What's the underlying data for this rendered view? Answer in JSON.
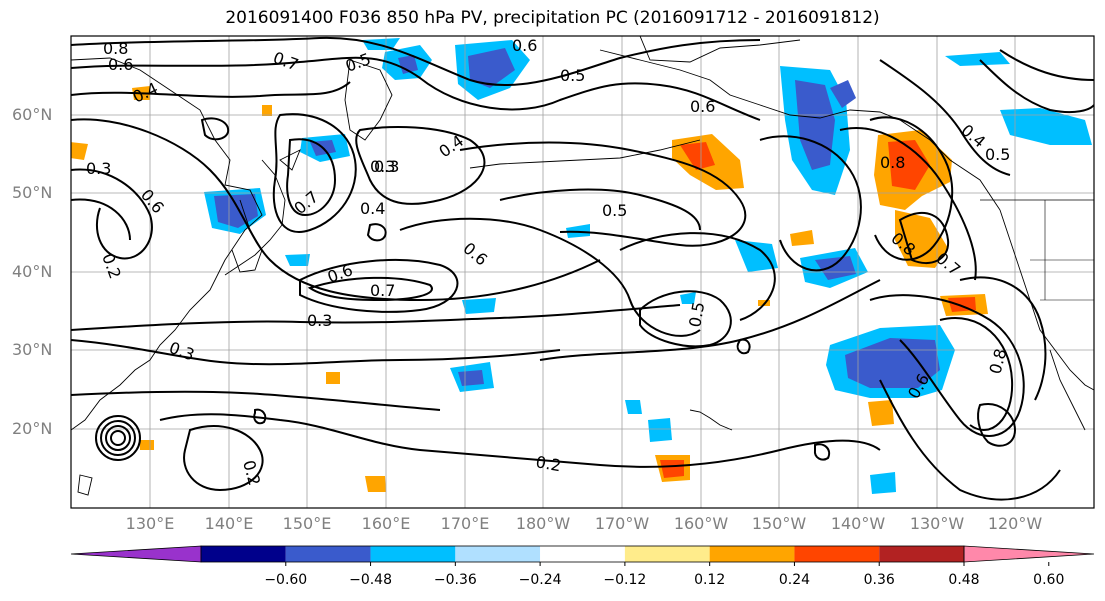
{
  "title": "2016091400 F036 850 hPa PV, precipitation PC (2016091712 - 2016091812)",
  "lat_labels": [
    "60°N",
    "50°N",
    "40°N",
    "30°N",
    "20°N"
  ],
  "lon_labels": [
    "130°E",
    "140°E",
    "150°E",
    "160°E",
    "170°E",
    "180°W",
    "170°W",
    "160°W",
    "150°W",
    "140°W",
    "130°W",
    "120°W"
  ],
  "colorbar": {
    "colors": [
      "#9932cc",
      "#00008b",
      "#3a5bcc",
      "#00bfff",
      "#b0e0ff",
      "#ffffff",
      "#ffec8b",
      "#ffa500",
      "#ff4500",
      "#b22222",
      "#ff88aa"
    ],
    "tick_labels": [
      "−0.60",
      "−0.48",
      "−0.36",
      "−0.24",
      "−0.12",
      "0.12",
      "0.24",
      "0.36",
      "0.48",
      "0.60"
    ]
  },
  "contour_labels": [
    "0.8",
    "0.6",
    "0.7",
    "0.5",
    "0.6",
    "0.4",
    "0.3",
    "0.6",
    "0.3",
    "0.7",
    "0.4",
    "0.6",
    "0.7",
    "0.5",
    "0.4",
    "0.3",
    "0.2",
    "0.6",
    "0.5",
    "0.3",
    "0.3",
    "0.2",
    "0.8",
    "0.6",
    "0.4",
    "0.5",
    "0.8",
    "0.7",
    "0.6",
    "0.8",
    "0.5",
    "0.2"
  ]
}
